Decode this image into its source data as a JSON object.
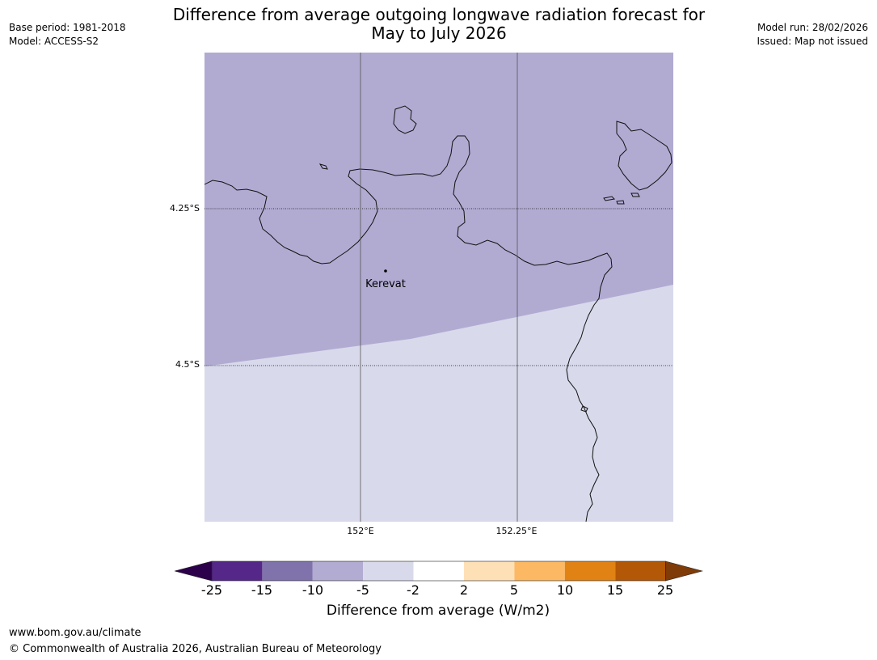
{
  "header": {
    "title_line1": "Difference from average outgoing longwave radiation forecast for",
    "title_line2": "May to July 2026",
    "base_period": "Base period: 1981-2018",
    "model": "Model: ACCESS-S2",
    "model_run": "Model run: 28/02/2026",
    "issued": "Issued: Map not issued"
  },
  "map": {
    "place_label": "Kerevat",
    "lat_labels": [
      "4.25°S",
      "4.5°S"
    ],
    "lon_labels": [
      "152°E",
      "152.25°E"
    ],
    "region_colors": {
      "upper": "#b1abd2",
      "lower": "#d8d9eb"
    }
  },
  "legend": {
    "title": "Difference from average (W/m2)",
    "ticks": [
      "-25",
      "-15",
      "-10",
      "-5",
      "-2",
      "2",
      "5",
      "10",
      "15",
      "25"
    ],
    "colors": [
      "#2d004b",
      "#542788",
      "#8073ac",
      "#b2abd2",
      "#d8daeb",
      "#ffffff",
      "#fee0b6",
      "#fdb863",
      "#e08214",
      "#b35806",
      "#7f3b08"
    ]
  },
  "footer": {
    "url": "www.bom.gov.au/climate",
    "copyright": "© Commonwealth of Australia 2026, Australian Bureau of Meteorology"
  }
}
